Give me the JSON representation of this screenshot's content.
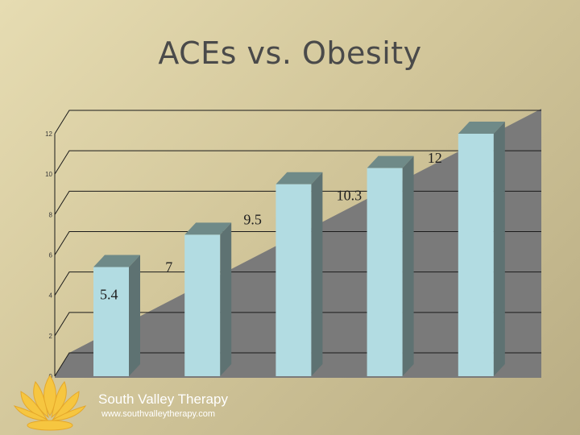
{
  "slide": {
    "title": "ACEs vs. Obesity",
    "brand_name": "South Valley Therapy",
    "brand_url": "www.southvalleytherapy.com"
  },
  "colors": {
    "plot_back": "#7a7a7a",
    "bar_front": "#b2dce2",
    "bar_side": "#5e7272",
    "bar_top": "#6f8a88",
    "logo": "#f6c640"
  },
  "chart_data": {
    "type": "bar",
    "title": "ACEs vs. Obesity",
    "categories": [
      "",
      "",
      "",
      "",
      ""
    ],
    "values": [
      5.4,
      7,
      9.5,
      10.3,
      12
    ],
    "data_labels": [
      "5.4",
      "7",
      "9.5",
      "10.3",
      "12"
    ],
    "ylim": [
      0,
      12
    ],
    "yticks": [
      0,
      2,
      4,
      6,
      8,
      10,
      12
    ],
    "grid": true,
    "xlabel": "",
    "ylabel": ""
  }
}
